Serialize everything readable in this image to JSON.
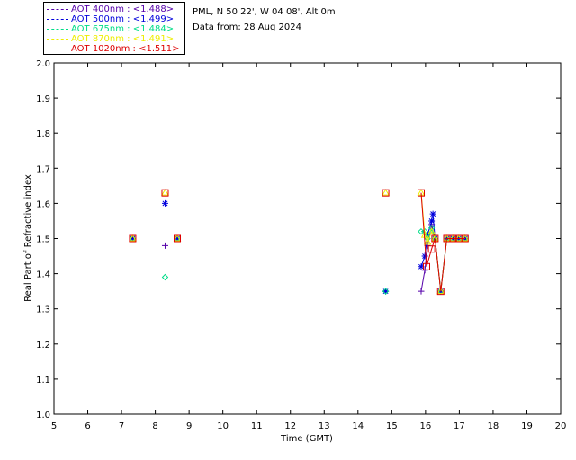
{
  "legend": [
    {
      "label": "AOT  400nm : <1.488>",
      "color": "#5500aa"
    },
    {
      "label": "AOT  500nm : <1.499>",
      "color": "#0000dd"
    },
    {
      "label": "AOT  675nm : <1.484>",
      "color": "#00dd88"
    },
    {
      "label": "AOT  870nm : <1.491>",
      "color": "#eeee00"
    },
    {
      "label": "AOT 1020nm : <1.511>",
      "color": "#dd0000"
    }
  ],
  "site": "PML, N 50 22', W 04 08', Alt 0m",
  "date_line": "Data from: 28 Aug 2024",
  "chart_data": {
    "type": "line",
    "xlabel": "Time (GMT)",
    "ylabel": "Real Part of Refractive index",
    "xlim": [
      5,
      20
    ],
    "ylim": [
      1.0,
      2.0
    ],
    "xticks": [
      "5",
      "6",
      "7",
      "8",
      "9",
      "10",
      "11",
      "12",
      "13",
      "14",
      "15",
      "16",
      "17",
      "18",
      "19",
      "20"
    ],
    "yticks": [
      "1.0",
      "1.1",
      "1.2",
      "1.3",
      "1.4",
      "1.5",
      "1.6",
      "1.7",
      "1.8",
      "1.9",
      "2.0"
    ],
    "grid": false,
    "legend_position": "top-left",
    "series": [
      {
        "name": "AOT  400nm",
        "color": "#5500aa",
        "marker": "plus",
        "points": [
          [
            7.33,
            1.5
          ],
          [
            8.29,
            1.48
          ],
          [
            8.65,
            1.5
          ],
          [
            14.82,
            1.35
          ],
          [
            15.87,
            1.35
          ],
          [
            15.98,
            1.41
          ],
          [
            16.06,
            1.48
          ],
          [
            16.18,
            1.54
          ],
          [
            16.28,
            1.5
          ],
          [
            16.45,
            1.35
          ],
          [
            16.63,
            1.5
          ],
          [
            16.82,
            1.5
          ],
          [
            16.98,
            1.5
          ],
          [
            17.17,
            1.5
          ]
        ]
      },
      {
        "name": "AOT  500nm",
        "color": "#0000dd",
        "marker": "asterisk",
        "points": [
          [
            7.33,
            1.5
          ],
          [
            8.29,
            1.6
          ],
          [
            8.65,
            1.5
          ],
          [
            14.82,
            1.35
          ],
          [
            15.87,
            1.42
          ],
          [
            15.98,
            1.45
          ],
          [
            16.06,
            1.51
          ],
          [
            16.18,
            1.55
          ],
          [
            16.22,
            1.57
          ],
          [
            16.28,
            1.5
          ],
          [
            16.45,
            1.35
          ],
          [
            16.63,
            1.5
          ],
          [
            16.82,
            1.5
          ],
          [
            16.98,
            1.5
          ],
          [
            17.17,
            1.5
          ]
        ]
      },
      {
        "name": "AOT  675nm",
        "color": "#00dd88",
        "marker": "diamond",
        "points": [
          [
            7.33,
            1.5
          ],
          [
            8.29,
            1.39
          ],
          [
            8.65,
            1.5
          ],
          [
            14.82,
            1.35
          ],
          [
            15.87,
            1.52
          ],
          [
            15.98,
            1.52
          ],
          [
            16.06,
            1.5
          ],
          [
            16.18,
            1.53
          ],
          [
            16.28,
            1.5
          ],
          [
            16.45,
            1.35
          ],
          [
            16.63,
            1.5
          ],
          [
            16.82,
            1.5
          ],
          [
            16.98,
            1.5
          ],
          [
            17.17,
            1.5
          ]
        ]
      },
      {
        "name": "AOT  870nm",
        "color": "#eeee00",
        "marker": "triangle",
        "points": [
          [
            7.33,
            1.5
          ],
          [
            8.29,
            1.63
          ],
          [
            8.65,
            1.5
          ],
          [
            14.82,
            1.63
          ],
          [
            15.87,
            1.63
          ],
          [
            15.98,
            1.51
          ],
          [
            16.06,
            1.49
          ],
          [
            16.18,
            1.52
          ],
          [
            16.28,
            1.5
          ],
          [
            16.45,
            1.35
          ],
          [
            16.63,
            1.5
          ],
          [
            16.82,
            1.5
          ],
          [
            16.98,
            1.5
          ],
          [
            17.17,
            1.5
          ]
        ]
      },
      {
        "name": "AOT 1020nm",
        "color": "#dd0000",
        "marker": "square",
        "points": [
          [
            7.33,
            1.5
          ],
          [
            8.29,
            1.63
          ],
          [
            8.65,
            1.5
          ],
          [
            14.82,
            1.63
          ],
          [
            15.87,
            1.63
          ],
          [
            16.03,
            1.42
          ],
          [
            16.18,
            1.47
          ],
          [
            16.28,
            1.5
          ],
          [
            16.45,
            1.35
          ],
          [
            16.63,
            1.5
          ],
          [
            16.82,
            1.5
          ],
          [
            16.98,
            1.5
          ],
          [
            17.17,
            1.5
          ]
        ]
      }
    ]
  }
}
